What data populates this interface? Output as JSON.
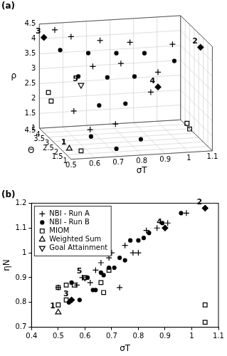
{
  "chart_data": [
    {
      "type": "scatter3d",
      "title": "(a)",
      "x_label": "σT",
      "y_label": "Θ",
      "z_label": "ρ",
      "xlim": [
        0.5,
        1.1
      ],
      "xticks": [
        0.5,
        0.6,
        0.7,
        0.8,
        0.9,
        1,
        1.1
      ],
      "ylim": [
        1,
        4.5
      ],
      "yticks": [
        1,
        1.5,
        2,
        2.5,
        3,
        3.5,
        4,
        4.5
      ],
      "zlim": [
        1,
        4.5
      ],
      "zticks": [
        1,
        1.5,
        2,
        2.5,
        3,
        3.5,
        4,
        4.5
      ],
      "grid": true,
      "series": [
        {
          "name": "NBI - Run A",
          "color": "#000000",
          "marker": "plus",
          "values": [
            [
              0.55,
              4.1,
              4.4
            ],
            [
              0.6,
              3.6,
              4.3
            ],
            [
              0.7,
              3.0,
              4.3
            ],
            [
              0.8,
              2.3,
              4.4
            ],
            [
              0.95,
              1.5,
              4.5
            ],
            [
              0.65,
              2.5,
              3.6
            ],
            [
              0.75,
              2.0,
              3.8
            ],
            [
              0.9,
              1.8,
              3.5
            ],
            [
              0.85,
              1.3,
              3.0
            ],
            [
              0.6,
              1.5,
              1.8
            ],
            [
              0.7,
              1.3,
              2.0
            ],
            [
              0.55,
              2.0,
              2.3
            ]
          ]
        },
        {
          "name": "NBI - Run B",
          "color": "#000000",
          "marker": "dot",
          "values": [
            [
              0.55,
              3.5,
              3.9
            ],
            [
              0.65,
              3.0,
              3.9
            ],
            [
              0.75,
              2.5,
              4.0
            ],
            [
              0.85,
              2.0,
              4.1
            ],
            [
              0.6,
              2.8,
              3.2
            ],
            [
              0.7,
              2.2,
              3.3
            ],
            [
              0.8,
              1.8,
              3.4
            ],
            [
              0.95,
              1.3,
              4.0
            ],
            [
              0.65,
              1.8,
              2.5
            ],
            [
              0.75,
              1.5,
              2.6
            ],
            [
              0.6,
              1.4,
              1.6
            ],
            [
              0.7,
              1.2,
              1.2
            ],
            [
              0.8,
              1.1,
              1.5
            ]
          ]
        },
        {
          "name": "MIOM",
          "color": "#000000",
          "marker": "square",
          "values": [
            [
              0.5,
              3.5,
              2.5
            ],
            [
              0.5,
              3.2,
              2.3
            ],
            [
              1.05,
              2.5,
              1.5
            ],
            [
              1.05,
              2.2,
              1.4
            ],
            [
              0.55,
              1.2,
              1.2
            ]
          ]
        },
        {
          "name": "Weighted Sum",
          "color": "#000000",
          "marker": "triangle",
          "values": [
            [
              0.5,
              1.2,
              1.3
            ]
          ]
        },
        {
          "name": "Goal Attainment",
          "color": "#000000",
          "marker": "triangle_down",
          "values": [
            [
              0.6,
              2.5,
              3.0
            ]
          ]
        },
        {
          "color": "#000000",
          "marker": "diamond",
          "values": [
            [
              1.05,
              1.0,
              4.5
            ],
            [
              0.5,
              4.0,
              4.2
            ],
            [
              0.9,
              1.8,
              3.0
            ]
          ]
        }
      ],
      "annotations": [
        {
          "text": "1",
          "x": 0.5,
          "y": 1.2,
          "z": 1.3
        },
        {
          "text": "2",
          "x": 1.05,
          "y": 1.0,
          "z": 4.5
        },
        {
          "text": "3",
          "x": 0.5,
          "y": 4.0,
          "z": 4.2
        },
        {
          "text": "4",
          "x": 0.9,
          "y": 1.8,
          "z": 3.0
        },
        {
          "text": "5",
          "x": 0.6,
          "y": 2.5,
          "z": 3.0
        }
      ]
    },
    {
      "type": "scatter",
      "title": "(b)",
      "x_label": "σT",
      "y_label": "ηN",
      "xlim": [
        0.4,
        1.1
      ],
      "xticks": [
        0.4,
        0.5,
        0.6,
        0.7,
        0.8,
        0.9,
        1,
        1.1
      ],
      "ylim": [
        0.7,
        1.2
      ],
      "yticks": [
        0.7,
        0.8,
        0.9,
        1,
        1.1,
        1.2
      ],
      "grid": false,
      "legend": "upper left",
      "series": [
        {
          "name": "NBI - Run A",
          "color": "#000000",
          "marker": "plus",
          "values": [
            [
              0.5,
              0.86
            ],
            [
              0.57,
              0.87
            ],
            [
              0.59,
              0.9
            ],
            [
              0.62,
              0.88
            ],
            [
              0.64,
              0.93
            ],
            [
              0.66,
              0.96
            ],
            [
              0.69,
              0.98
            ],
            [
              0.7,
              1.0
            ],
            [
              0.73,
              0.86
            ],
            [
              0.75,
              1.03
            ],
            [
              0.78,
              1.0
            ],
            [
              0.8,
              1.0
            ],
            [
              0.83,
              1.09
            ],
            [
              0.87,
              1.1
            ],
            [
              0.9,
              1.1
            ],
            [
              0.91,
              1.12
            ],
            [
              0.98,
              1.16
            ]
          ]
        },
        {
          "name": "NBI - Run B",
          "color": "#000000",
          "marker": "dot",
          "values": [
            [
              0.54,
              0.8
            ],
            [
              0.55,
              0.88
            ],
            [
              0.58,
              0.81
            ],
            [
              0.61,
              0.9
            ],
            [
              0.63,
              0.85
            ],
            [
              0.64,
              0.85
            ],
            [
              0.66,
              0.92
            ],
            [
              0.67,
              0.91
            ],
            [
              0.69,
              0.94
            ],
            [
              0.71,
              0.94
            ],
            [
              0.73,
              0.98
            ],
            [
              0.75,
              0.97
            ],
            [
              0.77,
              1.05
            ],
            [
              0.8,
              1.05
            ],
            [
              0.82,
              1.06
            ],
            [
              0.84,
              1.08
            ],
            [
              0.89,
              1.12
            ],
            [
              0.96,
              1.16
            ]
          ]
        },
        {
          "name": "MIOM",
          "color": "#000000",
          "marker": "square",
          "values": [
            [
              0.5,
              0.86
            ],
            [
              0.5,
              0.79
            ],
            [
              0.53,
              0.87
            ],
            [
              0.53,
              0.81
            ],
            [
              0.56,
              0.87
            ],
            [
              0.6,
              0.9
            ],
            [
              0.66,
              0.88
            ],
            [
              0.67,
              0.84
            ],
            [
              0.69,
              0.93
            ],
            [
              1.05,
              0.79
            ],
            [
              1.05,
              0.72
            ]
          ]
        },
        {
          "name": "Weighted Sum",
          "color": "#000000",
          "marker": "triangle",
          "values": [
            [
              0.5,
              0.76
            ]
          ]
        },
        {
          "name": "Goal Attainment",
          "color": "#000000",
          "marker": "triangle_down",
          "values": [
            [
              0.6,
              0.9
            ]
          ]
        },
        {
          "color": "#000000",
          "marker": "diamond",
          "values": [
            [
              1.05,
              1.18
            ],
            [
              0.55,
              0.81
            ],
            [
              0.9,
              1.1
            ]
          ]
        }
      ],
      "annotations": [
        {
          "text": "1",
          "x": 0.5,
          "y": 0.76
        },
        {
          "text": "2",
          "x": 1.05,
          "y": 1.18
        },
        {
          "text": "3",
          "x": 0.55,
          "y": 0.81
        },
        {
          "text": "4",
          "x": 0.9,
          "y": 1.1
        },
        {
          "text": "5",
          "x": 0.6,
          "y": 0.9
        }
      ]
    }
  ]
}
